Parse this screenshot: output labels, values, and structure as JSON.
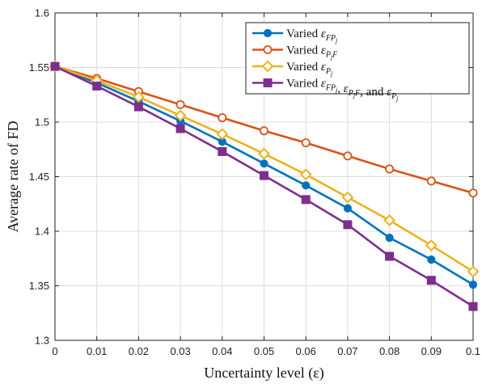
{
  "chart_data": {
    "type": "line",
    "xlabel": "Uncertainty level (ε)",
    "ylabel": "Average rate of FD",
    "xlim": [
      0,
      0.1
    ],
    "ylim": [
      1.3,
      1.6
    ],
    "grid": true,
    "legend_position": "top-right",
    "x": [
      0,
      0.01,
      0.02,
      0.03,
      0.04,
      0.05,
      0.06,
      0.07,
      0.08,
      0.09,
      0.1
    ],
    "x_ticks": [
      "0",
      "0.01",
      "0.02",
      "0.03",
      "0.04",
      "0.05",
      "0.06",
      "0.07",
      "0.08",
      "0.09",
      "0.1"
    ],
    "y_ticks": [
      "1.3",
      "1.35",
      "1.4",
      "1.45",
      "1.5",
      "1.55",
      "1.6"
    ],
    "series": [
      {
        "name": "Varied ε_{FP_j}",
        "color": "#0072BD",
        "marker": "circle-filled",
        "values": [
          1.551,
          1.536,
          1.519,
          1.501,
          1.482,
          1.462,
          1.442,
          1.421,
          1.394,
          1.374,
          1.351
        ]
      },
      {
        "name": "Varied ε_{P_jF}",
        "color": "#D95319",
        "marker": "circle-open",
        "values": [
          1.551,
          1.54,
          1.528,
          1.516,
          1.504,
          1.492,
          1.481,
          1.469,
          1.457,
          1.446,
          1.435
        ]
      },
      {
        "name": "Varied ε_{P_j}",
        "color": "#EDB120",
        "marker": "diamond",
        "values": [
          1.551,
          1.538,
          1.523,
          1.506,
          1.489,
          1.471,
          1.452,
          1.431,
          1.41,
          1.387,
          1.363
        ]
      },
      {
        "name": "Varied ε_{FP_j}, ε_{P_jF}, and ε_{P_j}",
        "color": "#7E2F8E",
        "marker": "square",
        "values": [
          1.551,
          1.533,
          1.514,
          1.494,
          1.473,
          1.451,
          1.429,
          1.406,
          1.377,
          1.355,
          1.331
        ]
      }
    ]
  },
  "legend": {
    "entries": [
      {
        "prefix": "Varied ",
        "parts": [
          [
            "ε",
            "FP",
            "j"
          ]
        ]
      },
      {
        "prefix": "Varied ",
        "parts": [
          [
            "ε",
            "P",
            "j",
            "F"
          ]
        ]
      },
      {
        "prefix": "Varied ",
        "parts": [
          [
            "ε",
            "P",
            "j"
          ]
        ]
      },
      {
        "prefix": "Varied ",
        "parts": [
          [
            "ε",
            "FP",
            "j"
          ],
          ", ",
          [
            "ε",
            "P",
            "j",
            "F"
          ],
          ", and ",
          [
            "ε",
            "P",
            "j"
          ]
        ]
      }
    ]
  }
}
